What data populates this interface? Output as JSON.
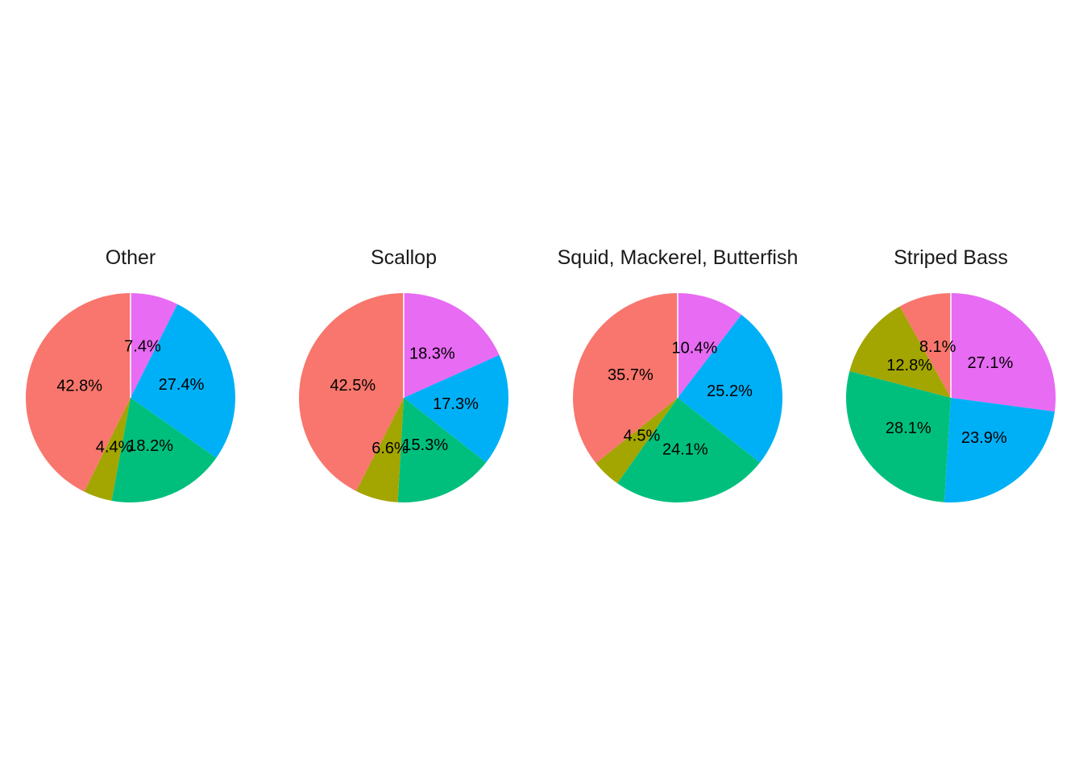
{
  "chart_data": [
    {
      "type": "pie",
      "title": "Other",
      "slices": [
        {
          "value": 7.4,
          "label": "7.4%",
          "color": "#E76BF3"
        },
        {
          "value": 27.4,
          "label": "27.4%",
          "color": "#00B0F6"
        },
        {
          "value": 18.2,
          "label": "18.2%",
          "color": "#00BF7D"
        },
        {
          "value": 4.4,
          "label": "4.4%",
          "color": "#A3A500"
        },
        {
          "value": 42.8,
          "label": "42.8%",
          "color": "#F8766D"
        }
      ]
    },
    {
      "type": "pie",
      "title": "Scallop",
      "slices": [
        {
          "value": 18.3,
          "label": "18.3%",
          "color": "#E76BF3"
        },
        {
          "value": 17.3,
          "label": "17.3%",
          "color": "#00B0F6"
        },
        {
          "value": 15.3,
          "label": "15.3%",
          "color": "#00BF7D"
        },
        {
          "value": 6.6,
          "label": "6.6%",
          "color": "#A3A500"
        },
        {
          "value": 42.5,
          "label": "42.5%",
          "color": "#F8766D"
        }
      ]
    },
    {
      "type": "pie",
      "title": "Squid, Mackerel, Butterfish",
      "slices": [
        {
          "value": 10.4,
          "label": "10.4%",
          "color": "#E76BF3"
        },
        {
          "value": 25.2,
          "label": "25.2%",
          "color": "#00B0F6"
        },
        {
          "value": 24.1,
          "label": "24.1%",
          "color": "#00BF7D"
        },
        {
          "value": 4.5,
          "label": "4.5%",
          "color": "#A3A500"
        },
        {
          "value": 35.7,
          "label": "35.7%",
          "color": "#F8766D"
        }
      ]
    },
    {
      "type": "pie",
      "title": "Striped Bass",
      "slices": [
        {
          "value": 27.1,
          "label": "27.1%",
          "color": "#E76BF3"
        },
        {
          "value": 23.9,
          "label": "23.9%",
          "color": "#00B0F6"
        },
        {
          "value": 28.1,
          "label": "28.1%",
          "color": "#00BF7D"
        },
        {
          "value": 12.8,
          "label": "12.8%",
          "color": "#A3A500"
        },
        {
          "value": 8.1,
          "label": "8.1%",
          "color": "#F8766D"
        }
      ]
    }
  ]
}
